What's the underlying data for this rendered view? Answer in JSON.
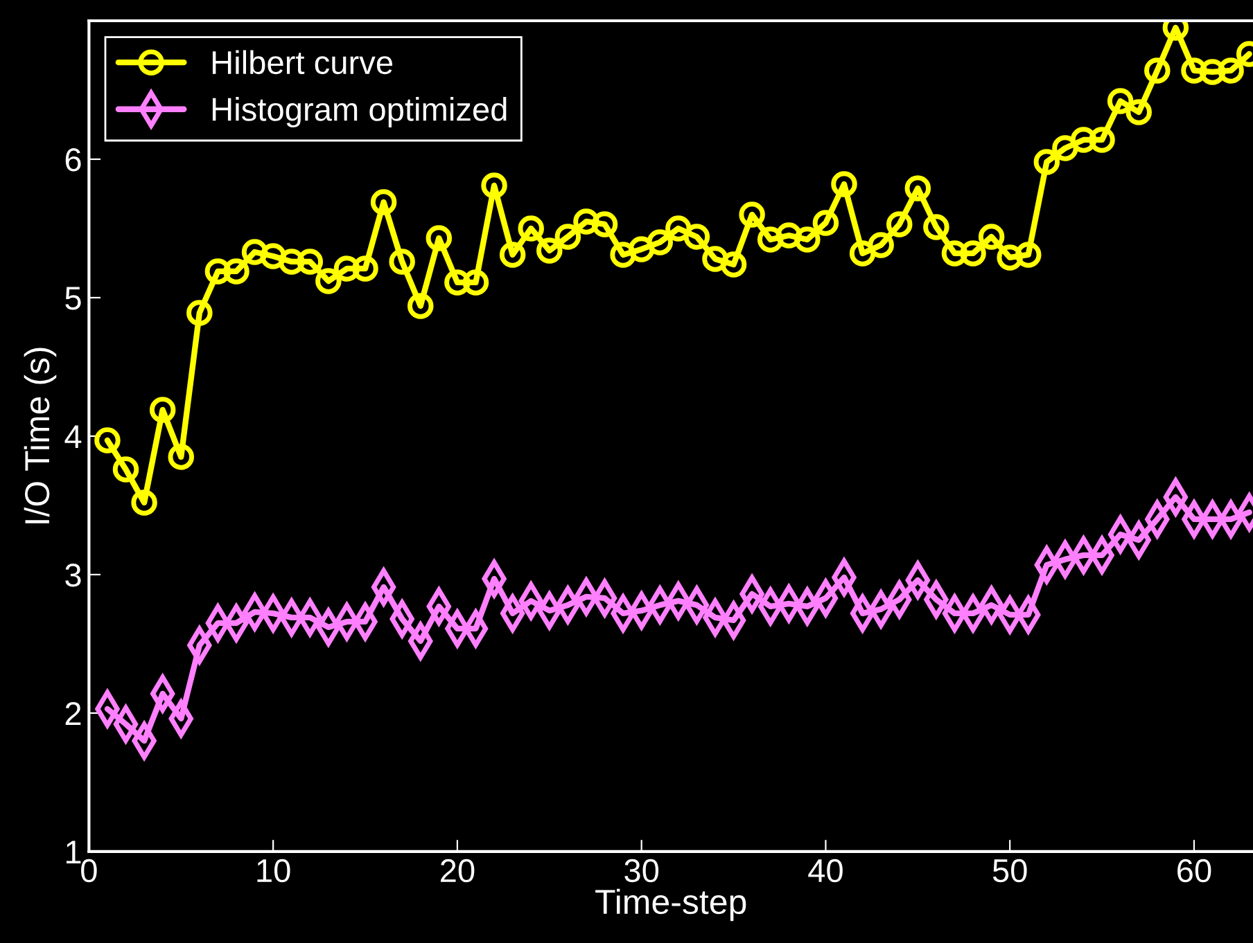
{
  "chart_data": {
    "type": "line",
    "xlabel": "Time-step",
    "ylabel": "I/O Time (s)",
    "x": [
      1,
      2,
      3,
      4,
      5,
      6,
      7,
      8,
      9,
      10,
      11,
      12,
      13,
      14,
      15,
      16,
      17,
      18,
      19,
      20,
      21,
      22,
      23,
      24,
      25,
      26,
      27,
      28,
      29,
      30,
      31,
      32,
      33,
      34,
      35,
      36,
      37,
      38,
      39,
      40,
      41,
      42,
      43,
      44,
      45,
      46,
      47,
      48,
      49,
      50,
      51,
      52,
      53,
      54,
      55,
      56,
      57,
      58,
      59,
      60,
      61,
      62,
      63
    ],
    "series": [
      {
        "name": "Hilbert curve",
        "color": "#ffff00",
        "marker": "circle",
        "values": [
          3.97,
          3.76,
          3.52,
          4.19,
          3.85,
          4.89,
          5.19,
          5.19,
          5.33,
          5.3,
          5.26,
          5.26,
          5.12,
          5.21,
          5.21,
          5.69,
          5.26,
          4.94,
          5.43,
          5.11,
          5.11,
          5.81,
          5.31,
          5.5,
          5.34,
          5.44,
          5.55,
          5.53,
          5.31,
          5.35,
          5.4,
          5.5,
          5.44,
          5.28,
          5.24,
          5.6,
          5.42,
          5.45,
          5.42,
          5.54,
          5.82,
          5.32,
          5.38,
          5.53,
          5.79,
          5.51,
          5.32,
          5.32,
          5.44,
          5.29,
          5.31,
          5.98,
          6.08,
          6.14,
          6.14,
          6.42,
          6.34,
          6.64,
          6.95,
          6.64,
          6.63,
          6.64,
          6.76
        ]
      },
      {
        "name": "Histogram optimized",
        "color": "#ff80ff",
        "marker": "diamond",
        "values": [
          2.03,
          1.92,
          1.8,
          2.14,
          1.96,
          2.49,
          2.65,
          2.65,
          2.73,
          2.72,
          2.69,
          2.69,
          2.62,
          2.66,
          2.66,
          2.91,
          2.68,
          2.52,
          2.77,
          2.61,
          2.61,
          2.97,
          2.72,
          2.81,
          2.74,
          2.78,
          2.84,
          2.83,
          2.72,
          2.74,
          2.78,
          2.81,
          2.78,
          2.69,
          2.67,
          2.86,
          2.77,
          2.79,
          2.77,
          2.83,
          2.98,
          2.72,
          2.75,
          2.82,
          2.96,
          2.82,
          2.72,
          2.72,
          2.78,
          2.71,
          2.71,
          3.07,
          3.11,
          3.14,
          3.14,
          3.29,
          3.25,
          3.4,
          3.56,
          3.4,
          3.4,
          3.4,
          3.45
        ]
      }
    ],
    "xlim": [
      0,
      63.2
    ],
    "ylim": [
      1,
      7
    ],
    "xticks": [
      0,
      10,
      20,
      30,
      40,
      50,
      60
    ],
    "yticks": [
      1,
      2,
      3,
      4,
      5,
      6,
      {
        "value": 7,
        "label": null
      }
    ],
    "grid": false,
    "legend": "top left",
    "line_style": "solid"
  }
}
